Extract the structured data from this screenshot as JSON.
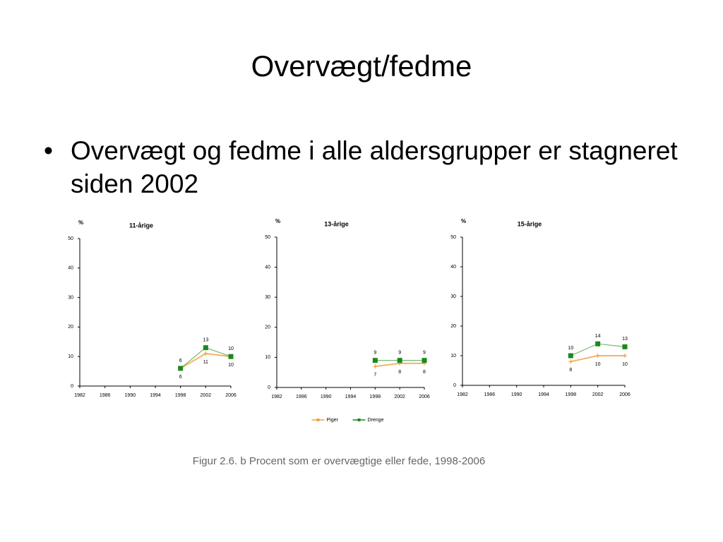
{
  "title": "Overvægt/fedme",
  "bullet": "Overvægt og fedme i alle aldersgrupper er stagneret siden 2002",
  "caption": "Figur 2.6. b  Procent som er overvægtige eller fede, 1998-2006",
  "chart_data": [
    {
      "type": "line",
      "title": "11-årige",
      "ylabel": "%",
      "categories": [
        "1982",
        "1986",
        "1990",
        "1994",
        "1998",
        "2002",
        "2006"
      ],
      "ylim": [
        0,
        50
      ],
      "yticks": [
        0,
        10,
        20,
        30,
        40,
        50
      ],
      "series": [
        {
          "color": "#f5a040",
          "values": [
            null,
            null,
            null,
            null,
            6,
            11,
            10
          ]
        },
        {
          "color": "#1a8a1a",
          "values": [
            null,
            null,
            null,
            null,
            6,
            13,
            10
          ]
        }
      ]
    },
    {
      "type": "line",
      "title": "13-årige",
      "ylabel": "%",
      "categories": [
        "1982",
        "1986",
        "1990",
        "1994",
        "1998",
        "2002",
        "2006"
      ],
      "ylim": [
        0,
        50
      ],
      "yticks": [
        0,
        10,
        20,
        30,
        40,
        50
      ],
      "legend": "bottom",
      "series": [
        {
          "name": "Piger",
          "color": "#f5a040",
          "values": [
            null,
            null,
            null,
            null,
            7,
            8,
            8
          ]
        },
        {
          "name": "Drenge",
          "color": "#1a8a1a",
          "values": [
            null,
            null,
            null,
            null,
            9,
            9,
            9
          ]
        }
      ]
    },
    {
      "type": "line",
      "title": "15-årige",
      "ylabel": "%",
      "categories": [
        "1982",
        "1986",
        "1990",
        "1994",
        "1998",
        "2002",
        "2006"
      ],
      "ylim": [
        0,
        50
      ],
      "yticks": [
        0,
        10,
        20,
        30,
        40,
        50
      ],
      "series": [
        {
          "color": "#f5a040",
          "values": [
            null,
            null,
            null,
            null,
            8,
            10,
            10
          ]
        },
        {
          "color": "#1a8a1a",
          "values": [
            null,
            null,
            null,
            null,
            10,
            14,
            13
          ]
        }
      ]
    }
  ]
}
